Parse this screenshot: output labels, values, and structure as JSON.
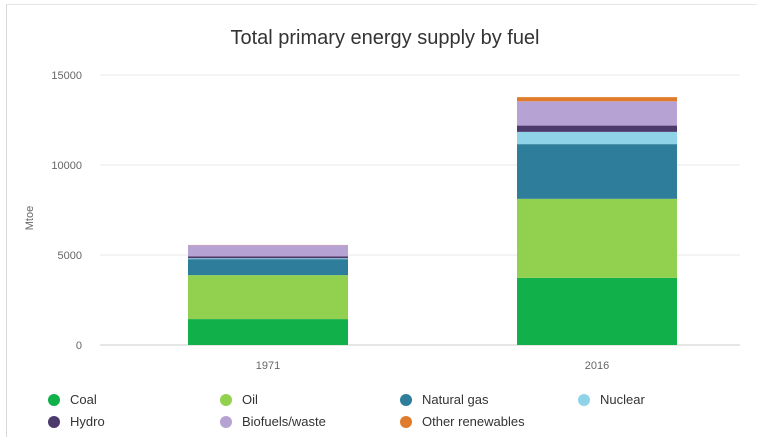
{
  "chart_data": {
    "type": "bar",
    "stacked": true,
    "title": "Total primary energy supply by fuel",
    "xlabel": "",
    "ylabel": "Mtoe",
    "ylim": [
      0,
      15000
    ],
    "yticks": [
      0,
      5000,
      10000,
      15000
    ],
    "grid": true,
    "legend_position": "bottom",
    "categories": [
      "1971",
      "2016"
    ],
    "series": [
      {
        "name": "Coal",
        "color": "#12b04b",
        "values": [
          1440,
          3730
        ]
      },
      {
        "name": "Oil",
        "color": "#92d050",
        "values": [
          2440,
          4390
        ]
      },
      {
        "name": "Natural gas",
        "color": "#2e7d9a",
        "values": [
          890,
          3040
        ]
      },
      {
        "name": "Nuclear",
        "color": "#8fd3e8",
        "values": [
          50,
          680
        ]
      },
      {
        "name": "Hydro",
        "color": "#4b3a6b",
        "values": [
          110,
          350
        ]
      },
      {
        "name": "Biofuels/waste",
        "color": "#b6a2d3",
        "values": [
          620,
          1350
        ]
      },
      {
        "name": "Other renewables",
        "color": "#e07b2c",
        "values": [
          10,
          230
        ]
      }
    ]
  }
}
